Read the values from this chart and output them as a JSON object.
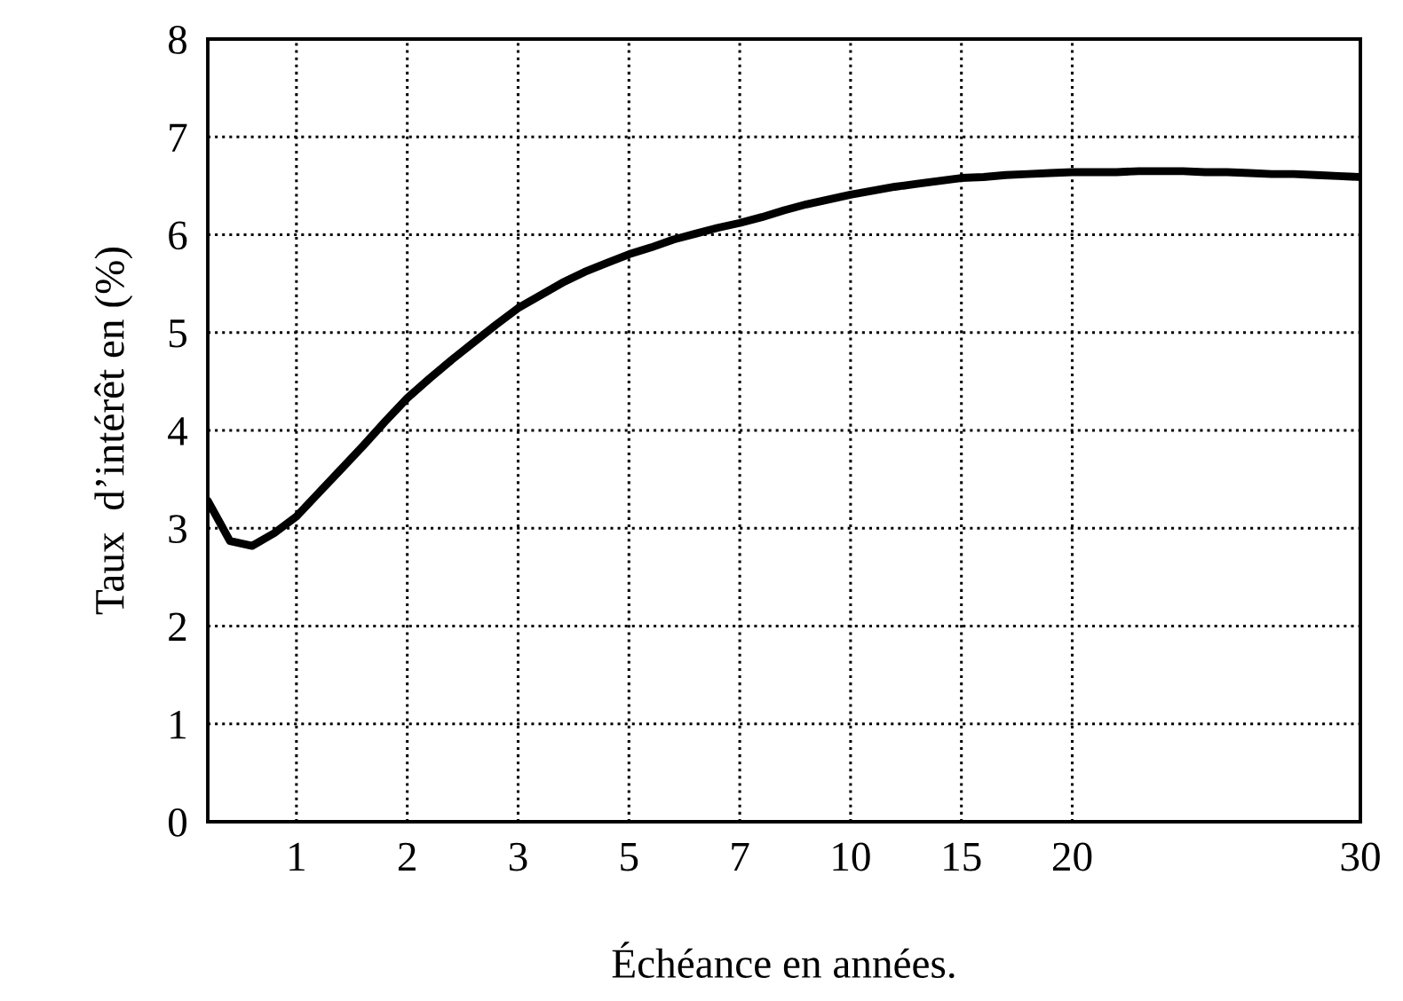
{
  "chart_data": {
    "type": "line",
    "xlabel": "Échéance en années.",
    "ylabel": "Taux  d’intérêt en (%)",
    "categories": [
      null,
      null,
      null,
      null,
      "1",
      null,
      null,
      null,
      null,
      "2",
      null,
      null,
      null,
      null,
      "3",
      null,
      null,
      null,
      null,
      "5",
      null,
      null,
      null,
      null,
      "7",
      null,
      null,
      null,
      null,
      "10",
      null,
      null,
      null,
      null,
      "15",
      null,
      null,
      null,
      null,
      "20",
      null,
      null,
      null,
      null,
      null,
      null,
      null,
      null,
      null,
      null,
      null,
      null,
      "30"
    ],
    "series": [
      {
        "color": "#000000",
        "values": [
          3.28,
          2.87,
          2.82,
          2.95,
          3.12,
          3.36,
          3.6,
          3.84,
          4.09,
          4.33,
          4.53,
          4.72,
          4.9,
          5.08,
          5.25,
          5.38,
          5.51,
          5.62,
          5.71,
          5.8,
          5.87,
          5.95,
          6.01,
          6.07,
          6.12,
          6.18,
          6.25,
          6.31,
          6.36,
          6.41,
          6.45,
          6.49,
          6.52,
          6.55,
          6.58,
          6.59,
          6.61,
          6.62,
          6.63,
          6.64,
          6.64,
          6.64,
          6.65,
          6.65,
          6.65,
          6.64,
          6.64,
          6.63,
          6.62,
          6.62,
          6.61,
          6.6,
          6.59
        ]
      }
    ],
    "ylim": [
      0,
      8
    ],
    "yticks": [
      0,
      1,
      2,
      3,
      4,
      5,
      6,
      7,
      8
    ],
    "grid": true,
    "line_style": "solid"
  }
}
